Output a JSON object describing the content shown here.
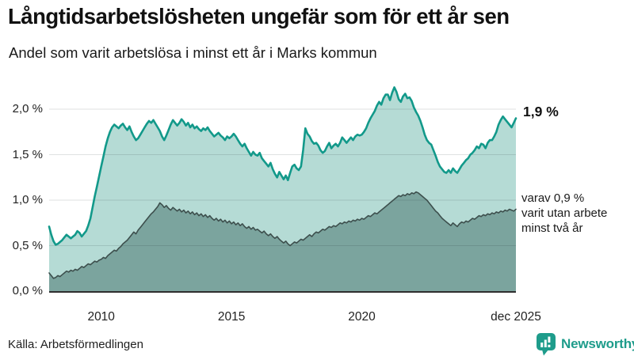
{
  "header": {
    "title": "Långtidsarbetslösheten ungefär som för ett år sen",
    "subtitle": "Andel som varit arbetslösa i minst ett år i Marks kommun"
  },
  "chart_data": {
    "type": "area",
    "title": "Långtidsarbetslösheten ungefär som för ett år sen",
    "subtitle": "Andel som varit arbetslösa i minst ett år i Marks kommun",
    "x_start": "2008-01",
    "x_end": "2025-12",
    "x_interval": "monthly",
    "ylim": [
      0,
      2.3
    ],
    "grid": true,
    "legend_position": "none",
    "y_ticks": [
      {
        "value": 0.0,
        "label": "0,0 %"
      },
      {
        "value": 0.5,
        "label": "0,5 %"
      },
      {
        "value": 1.0,
        "label": "1,0 %"
      },
      {
        "value": 1.5,
        "label": "1,5 %"
      },
      {
        "value": 2.0,
        "label": "2,0 %"
      }
    ],
    "x_ticks": [
      {
        "index": 24,
        "label": "2010"
      },
      {
        "index": 84,
        "label": "2015"
      },
      {
        "index": 144,
        "label": "2020"
      },
      {
        "index": 215,
        "label": "dec 2025"
      }
    ],
    "series": [
      {
        "name": "Andel som varit arbetslösa i minst ett år",
        "color": "#12998a",
        "fill": "#b5dbd5",
        "last_value": 1.9,
        "values": [
          0.71,
          0.62,
          0.55,
          0.51,
          0.52,
          0.54,
          0.56,
          0.59,
          0.62,
          0.6,
          0.58,
          0.6,
          0.62,
          0.66,
          0.64,
          0.6,
          0.63,
          0.66,
          0.72,
          0.8,
          0.92,
          1.04,
          1.15,
          1.26,
          1.37,
          1.48,
          1.59,
          1.68,
          1.75,
          1.8,
          1.83,
          1.81,
          1.79,
          1.82,
          1.84,
          1.8,
          1.77,
          1.81,
          1.75,
          1.7,
          1.66,
          1.68,
          1.72,
          1.76,
          1.8,
          1.84,
          1.87,
          1.85,
          1.88,
          1.84,
          1.8,
          1.76,
          1.7,
          1.66,
          1.71,
          1.77,
          1.83,
          1.88,
          1.85,
          1.82,
          1.85,
          1.89,
          1.86,
          1.82,
          1.85,
          1.8,
          1.83,
          1.79,
          1.81,
          1.78,
          1.76,
          1.79,
          1.77,
          1.8,
          1.76,
          1.73,
          1.7,
          1.72,
          1.74,
          1.71,
          1.69,
          1.66,
          1.7,
          1.68,
          1.7,
          1.73,
          1.7,
          1.66,
          1.62,
          1.59,
          1.62,
          1.57,
          1.53,
          1.49,
          1.53,
          1.5,
          1.49,
          1.52,
          1.46,
          1.43,
          1.4,
          1.37,
          1.41,
          1.34,
          1.29,
          1.25,
          1.31,
          1.27,
          1.23,
          1.27,
          1.22,
          1.3,
          1.37,
          1.39,
          1.35,
          1.33,
          1.37,
          1.55,
          1.79,
          1.73,
          1.7,
          1.65,
          1.62,
          1.63,
          1.6,
          1.55,
          1.52,
          1.54,
          1.59,
          1.63,
          1.57,
          1.6,
          1.62,
          1.59,
          1.63,
          1.69,
          1.66,
          1.63,
          1.66,
          1.69,
          1.66,
          1.7,
          1.72,
          1.71,
          1.72,
          1.75,
          1.79,
          1.85,
          1.9,
          1.94,
          1.98,
          2.04,
          2.08,
          2.05,
          2.12,
          2.16,
          2.16,
          2.1,
          2.18,
          2.24,
          2.19,
          2.11,
          2.08,
          2.14,
          2.17,
          2.12,
          2.13,
          2.09,
          2.02,
          1.97,
          1.93,
          1.87,
          1.8,
          1.72,
          1.66,
          1.63,
          1.61,
          1.55,
          1.49,
          1.42,
          1.37,
          1.34,
          1.31,
          1.3,
          1.33,
          1.3,
          1.35,
          1.32,
          1.3,
          1.34,
          1.38,
          1.41,
          1.44,
          1.46,
          1.5,
          1.52,
          1.55,
          1.59,
          1.57,
          1.62,
          1.61,
          1.57,
          1.63,
          1.66,
          1.66,
          1.7,
          1.75,
          1.83,
          1.88,
          1.92,
          1.89,
          1.86,
          1.83,
          1.8,
          1.85,
          1.9
        ]
      },
      {
        "name": "varav utan arbete minst två år",
        "color": "#3d4f4d",
        "fill": "#7ba49e",
        "last_value": 0.9,
        "values": [
          0.2,
          0.17,
          0.14,
          0.15,
          0.17,
          0.16,
          0.18,
          0.2,
          0.22,
          0.21,
          0.23,
          0.22,
          0.24,
          0.23,
          0.25,
          0.27,
          0.26,
          0.28,
          0.3,
          0.29,
          0.31,
          0.33,
          0.32,
          0.34,
          0.35,
          0.37,
          0.36,
          0.39,
          0.41,
          0.43,
          0.45,
          0.44,
          0.47,
          0.49,
          0.52,
          0.54,
          0.56,
          0.59,
          0.62,
          0.65,
          0.63,
          0.67,
          0.7,
          0.73,
          0.76,
          0.79,
          0.82,
          0.85,
          0.87,
          0.9,
          0.93,
          0.97,
          0.95,
          0.92,
          0.94,
          0.91,
          0.89,
          0.92,
          0.9,
          0.88,
          0.9,
          0.87,
          0.89,
          0.86,
          0.88,
          0.85,
          0.87,
          0.84,
          0.86,
          0.83,
          0.85,
          0.82,
          0.84,
          0.81,
          0.83,
          0.8,
          0.78,
          0.8,
          0.77,
          0.79,
          0.76,
          0.78,
          0.75,
          0.77,
          0.74,
          0.76,
          0.73,
          0.75,
          0.72,
          0.74,
          0.71,
          0.69,
          0.71,
          0.68,
          0.7,
          0.67,
          0.68,
          0.66,
          0.64,
          0.66,
          0.63,
          0.61,
          0.63,
          0.6,
          0.58,
          0.6,
          0.57,
          0.55,
          0.53,
          0.55,
          0.52,
          0.5,
          0.52,
          0.54,
          0.53,
          0.55,
          0.57,
          0.56,
          0.58,
          0.6,
          0.62,
          0.6,
          0.63,
          0.65,
          0.64,
          0.66,
          0.68,
          0.67,
          0.69,
          0.71,
          0.7,
          0.72,
          0.71,
          0.73,
          0.75,
          0.74,
          0.76,
          0.75,
          0.77,
          0.76,
          0.78,
          0.77,
          0.79,
          0.78,
          0.8,
          0.79,
          0.81,
          0.83,
          0.82,
          0.84,
          0.86,
          0.85,
          0.87,
          0.89,
          0.91,
          0.93,
          0.95,
          0.97,
          0.99,
          1.01,
          1.03,
          1.05,
          1.04,
          1.06,
          1.05,
          1.07,
          1.06,
          1.08,
          1.07,
          1.09,
          1.08,
          1.06,
          1.04,
          1.02,
          1.0,
          0.97,
          0.94,
          0.91,
          0.88,
          0.86,
          0.83,
          0.8,
          0.78,
          0.76,
          0.74,
          0.72,
          0.75,
          0.73,
          0.71,
          0.74,
          0.76,
          0.75,
          0.77,
          0.76,
          0.78,
          0.8,
          0.79,
          0.81,
          0.83,
          0.82,
          0.84,
          0.83,
          0.85,
          0.84,
          0.86,
          0.85,
          0.87,
          0.86,
          0.88,
          0.87,
          0.89,
          0.88,
          0.9,
          0.89,
          0.88,
          0.9
        ]
      }
    ],
    "annotations": {
      "last_value_label": "1,9 %",
      "secondary_line1": "varav 0,9 %",
      "secondary_line2": "varit utan arbete",
      "secondary_line3": "minst två år"
    }
  },
  "footer": {
    "source": "Källa: Arbetsförmedlingen",
    "brand": "Newsworthy"
  },
  "colors": {
    "accent_teal": "#12998a",
    "light_fill": "#b5dbd5",
    "dark_fill": "#7ba49e",
    "dark_line": "#3d4f4d",
    "brand_teal": "#1e9c8b",
    "text": "#1a1a1a",
    "gridline": "#dedede"
  }
}
